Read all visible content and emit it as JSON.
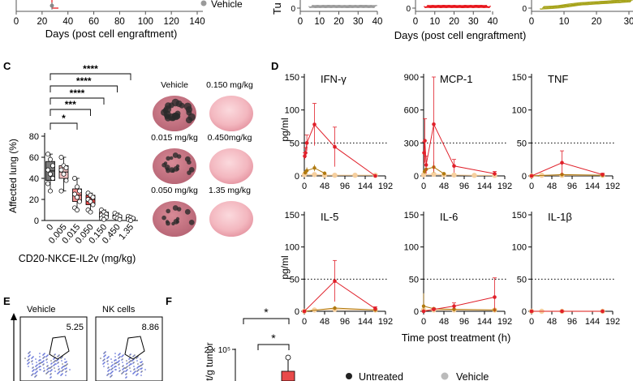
{
  "panel_labels": {
    "C": "C",
    "D": "D",
    "E": "E",
    "F": "F"
  },
  "top": {
    "left_xlabel": "Days (post cell engraftment)",
    "left_ticks": [
      "0",
      "20",
      "40",
      "60",
      "80",
      "100",
      "120",
      "140"
    ],
    "vehicle_legend": "Vehicle",
    "right_ylabel_fragment": "Tu",
    "right_xlabel": "Days (post cell engraftment)",
    "right_ticks": [
      "0",
      "10",
      "20",
      "30",
      "40"
    ]
  },
  "colors": {
    "gray": "#9a9a9a",
    "red": "#e8161c",
    "olive": "#a6a31a",
    "dark_box": "#7a7a7a",
    "pink_box": "#f4c4c4",
    "salmon_box": "#f08f8f",
    "red_box": "#e84a4a",
    "untreated": "#e0202a",
    "vehicle_light": "#f6cf9e",
    "low_dose": "#c8a040",
    "mid_dose": "#b07a10"
  },
  "chart_data": [
    {
      "panel": "C",
      "type": "box",
      "ylabel": "Affected lung (%)",
      "xlabel": "CD20-NKCE-IL2v (mg/kg)",
      "yticks": [
        "0",
        "20",
        "40",
        "60",
        "80"
      ],
      "ylim": [
        0,
        80
      ],
      "categories": [
        "0",
        "0.005",
        "0.015",
        "0.050",
        "0.150",
        "0.450",
        "1.35"
      ],
      "boxes": [
        {
          "q1": 38,
          "median": 47,
          "q3": 56,
          "min": 28,
          "max": 63,
          "points": [
            63,
            58,
            52,
            48,
            44,
            40,
            35,
            28
          ]
        },
        {
          "q1": 40,
          "median": 46,
          "q3": 52,
          "min": 28,
          "max": 60,
          "points": [
            60,
            52,
            50,
            48,
            44,
            38,
            28
          ]
        },
        {
          "q1": 18,
          "median": 24,
          "q3": 30,
          "min": 10,
          "max": 40,
          "points": [
            40,
            32,
            28,
            25,
            22,
            18,
            12,
            10
          ]
        },
        {
          "q1": 15,
          "median": 20,
          "q3": 24,
          "min": 8,
          "max": 26,
          "points": [
            26,
            24,
            22,
            20,
            18,
            15,
            10,
            8
          ]
        },
        {
          "q1": 3,
          "median": 5,
          "q3": 8,
          "min": 1,
          "max": 10,
          "points": [
            10,
            8,
            6,
            5,
            4,
            3,
            2,
            1
          ]
        },
        {
          "q1": 2,
          "median": 3,
          "q3": 5,
          "min": 1,
          "max": 7,
          "points": [
            7,
            5,
            4,
            3,
            2,
            1
          ]
        },
        {
          "q1": 1,
          "median": 2,
          "q3": 3,
          "min": 0,
          "max": 4,
          "points": [
            4,
            3,
            2,
            1,
            0
          ]
        }
      ],
      "significance": [
        {
          "to": "1.35",
          "label": "****"
        },
        {
          "to": "0.450",
          "label": "****"
        },
        {
          "to": "0.150",
          "label": "****"
        },
        {
          "to": "0.050",
          "label": "***"
        },
        {
          "to": "0.015",
          "label": "*"
        }
      ],
      "lung_labels": [
        "Vehicle",
        "0.150 mg/kg",
        "0.015 mg/kg",
        "0.450mg/kg",
        "0.050 mg/kg",
        "1.35 mg/kg"
      ]
    },
    {
      "panel": "D",
      "type": "line",
      "xlabel": "Time post treatment (h)",
      "ylabel": "pg/ml",
      "xticks": [
        "0",
        "48",
        "96",
        "144",
        "192"
      ],
      "threshold": 50,
      "plots": [
        {
          "title": "IFN-γ",
          "ymax": 150,
          "yticks": [
            "0",
            "50",
            "100",
            "150"
          ],
          "untreated": {
            "x": [
              1,
              3,
              6,
              24,
              72,
              168
            ],
            "y": [
              30,
              35,
              50,
              78,
              44,
              0
            ],
            "err": [
              5,
              8,
              12,
              32,
              30,
              0
            ]
          },
          "dose": {
            "x": [
              2,
              6,
              24,
              48
            ],
            "y": [
              5,
              8,
              12,
              4
            ],
            "err": [
              3,
              5,
              5,
              2
            ]
          },
          "vehicle": {
            "x": [
              0,
              24,
              48,
              72,
              120,
              168
            ],
            "y": [
              2,
              2,
              1,
              1,
              1,
              1
            ]
          }
        },
        {
          "title": "MCP-1",
          "ymax": 900,
          "yticks": [
            "0",
            "300",
            "600",
            "900"
          ],
          "untreated": {
            "x": [
              1,
              3,
              6,
              24,
              72,
              168
            ],
            "y": [
              210,
              320,
              100,
              470,
              90,
              20
            ],
            "err": [
              100,
              200,
              80,
              430,
              60,
              20
            ]
          },
          "dose": {
            "x": [
              2,
              6,
              24,
              48
            ],
            "y": [
              40,
              60,
              80,
              20
            ],
            "err": [
              20,
              40,
              50,
              15
            ]
          },
          "vehicle": {
            "x": [
              0,
              24,
              48,
              72,
              120,
              168
            ],
            "y": [
              10,
              15,
              10,
              8,
              5,
              5
            ]
          }
        },
        {
          "title": "TNF",
          "ymax": 150,
          "yticks": [
            "0",
            "50",
            "100",
            "150"
          ],
          "untreated": {
            "x": [
              0,
              72,
              168
            ],
            "y": [
              0,
              20,
              2
            ],
            "err": [
              0,
              18,
              2
            ]
          },
          "dose": {
            "x": [
              0,
              72,
              168
            ],
            "y": [
              0,
              2,
              1
            ],
            "err": [
              0,
              1,
              1
            ]
          },
          "vehicle": {
            "x": [
              0,
              24,
              72,
              168
            ],
            "y": [
              0,
              1,
              1,
              1
            ]
          }
        },
        {
          "title": "IL-5",
          "ymax": 150,
          "yticks": [
            "0",
            "50",
            "100",
            "150"
          ],
          "untreated": {
            "x": [
              0,
              72,
              168
            ],
            "y": [
              0,
              47,
              4
            ],
            "err": [
              0,
              32,
              3
            ]
          },
          "dose": {
            "x": [
              0,
              72,
              168
            ],
            "y": [
              0,
              5,
              2
            ],
            "err": [
              0,
              3,
              1
            ]
          },
          "vehicle": {
            "x": [
              0,
              24,
              72,
              168
            ],
            "y": [
              0,
              2,
              3,
              2
            ]
          }
        },
        {
          "title": "IL-6",
          "ymax": 150,
          "yticks": [
            "0",
            "50",
            "100",
            "150"
          ],
          "untreated": {
            "x": [
              0,
              24,
              72,
              168
            ],
            "y": [
              0,
              3,
              8,
              22
            ],
            "err": [
              0,
              2,
              5,
              30
            ]
          },
          "dose": {
            "x": [
              0,
              24,
              72,
              168
            ],
            "y": [
              8,
              4,
              3,
              2
            ],
            "err": [
              20,
              3,
              3,
              2
            ]
          },
          "vehicle": {
            "x": [
              0,
              24,
              72,
              168
            ],
            "y": [
              2,
              2,
              2,
              2
            ]
          }
        },
        {
          "title": "IL-1β",
          "ymax": 150,
          "yticks": [
            "0",
            "50",
            "100",
            "150"
          ],
          "untreated": {
            "x": [
              0,
              72,
              168
            ],
            "y": [
              0,
              0,
              0
            ],
            "err": [
              0,
              0,
              0
            ]
          },
          "dose": {
            "x": [
              0,
              72,
              168
            ],
            "y": [
              0,
              0,
              0
            ],
            "err": [
              0,
              0,
              0
            ]
          },
          "vehicle": {
            "x": [
              0,
              24,
              72,
              168
            ],
            "y": [
              0,
              0,
              0,
              0
            ]
          }
        }
      ],
      "legend": [
        {
          "name": "Untreated",
          "color": "#222222"
        },
        {
          "name": "Vehicle",
          "color": "#bbbbbb"
        }
      ]
    },
    {
      "panel": "E",
      "type": "scatter",
      "gates": [
        {
          "title": "Vehicle",
          "value": "5.25"
        },
        {
          "title": "NK cells",
          "value": "8.86"
        }
      ]
    },
    {
      "panel": "F",
      "type": "bar",
      "ylabel_fragment": "t/g tumor",
      "ytick": "2 × 10⁵",
      "significance": [
        "*",
        "*"
      ]
    }
  ]
}
